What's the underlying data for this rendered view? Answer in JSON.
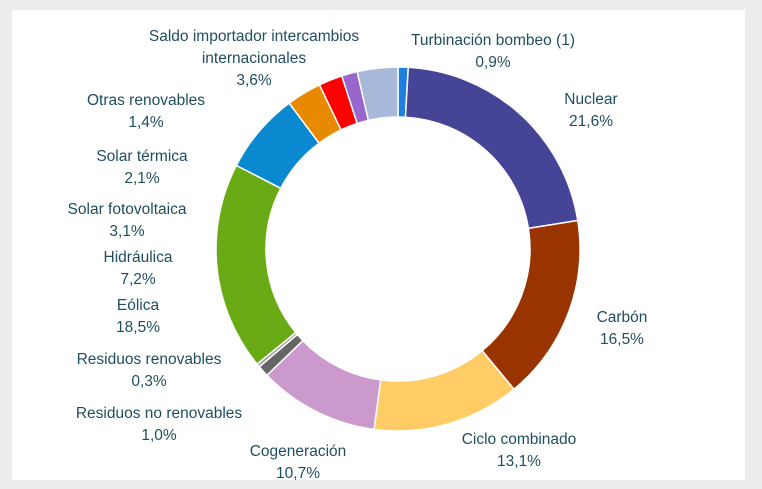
{
  "chart_data": {
    "type": "donut",
    "categories": [
      "Turbinación bombeo (1)",
      "Nuclear",
      "Carbón",
      "Ciclo combinado",
      "Cogeneración",
      "Residuos no renovables",
      "Residuos renovables",
      "Eólica",
      "Hidráulica",
      "Solar fotovoltaica",
      "Solar térmica",
      "Otras renovables",
      "Saldo importador intercambios internacionales"
    ],
    "values": [
      0.9,
      21.6,
      16.5,
      13.1,
      10.7,
      1.0,
      0.3,
      18.5,
      7.2,
      3.1,
      2.1,
      1.4,
      3.6
    ],
    "value_labels": [
      "0,9%",
      "21,6%",
      "16,5%",
      "13,1%",
      "10,7%",
      "1,0%",
      "0,3%",
      "18,5%",
      "7,2%",
      "3,1%",
      "2,1%",
      "1,4%",
      "3,6%"
    ],
    "colors": [
      "#1e7fe0",
      "#464496",
      "#993300",
      "#ffcc66",
      "#cc99cc",
      "#666666",
      "#a0a0a0",
      "#6aab15",
      "#0a88d0",
      "#e88a00",
      "#ff0000",
      "#9966cc",
      "#a8b8d8"
    ]
  }
}
